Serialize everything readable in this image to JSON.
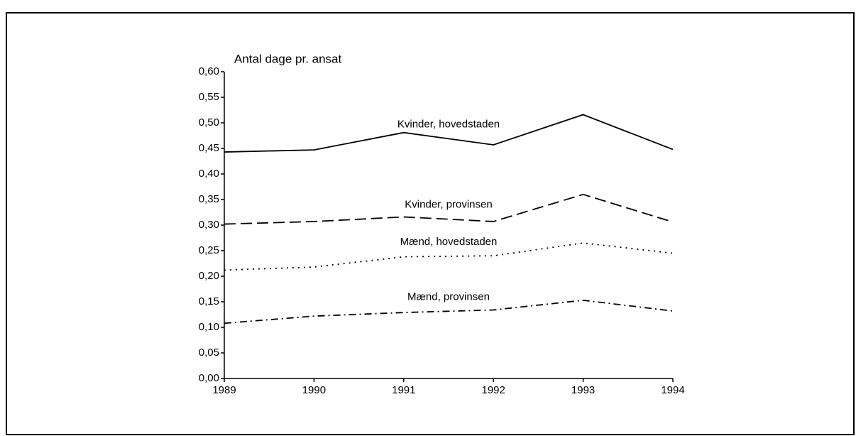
{
  "chart_data": {
    "type": "line",
    "ylabel": "Antal dage pr. ansat",
    "x": [
      1989,
      1990,
      1991,
      1992,
      1993,
      1994
    ],
    "xlim": [
      1989,
      1994
    ],
    "xticks": [
      1989,
      1990,
      1991,
      1992,
      1993,
      1994
    ],
    "ylim": [
      0,
      0.6
    ],
    "yticks": [
      {
        "value": 0,
        "label": "0,00"
      },
      {
        "value": 0.05,
        "label": "0,05"
      },
      {
        "value": 0.1,
        "label": "0,10"
      },
      {
        "value": 0.15,
        "label": "0,15"
      },
      {
        "value": 0.2,
        "label": "0,20"
      },
      {
        "value": 0.25,
        "label": "0,25"
      },
      {
        "value": 0.3,
        "label": "0,30"
      },
      {
        "value": 0.35,
        "label": "0,35"
      },
      {
        "value": 0.4,
        "label": "0,40"
      },
      {
        "value": 0.45,
        "label": "0,45"
      },
      {
        "value": 0.5,
        "label": "0,50"
      },
      {
        "value": 0.55,
        "label": "0,55"
      },
      {
        "value": 0.6,
        "label": "0,60"
      }
    ],
    "series": [
      {
        "name": "Kvinder, hovedstaden",
        "color": "#000000",
        "dash": "solid",
        "values": [
          0.443,
          0.447,
          0.481,
          0.457,
          0.516,
          0.448
        ]
      },
      {
        "name": "Kvinder, provinsen",
        "color": "#000000",
        "dash": "dashed",
        "values": [
          0.302,
          0.307,
          0.316,
          0.307,
          0.36,
          0.306
        ]
      },
      {
        "name": "Mænd, hovedstaden",
        "color": "#000000",
        "dash": "dotted",
        "values": [
          0.212,
          0.218,
          0.238,
          0.24,
          0.265,
          0.245
        ]
      },
      {
        "name": "Mænd, provinsen",
        "color": "#000000",
        "dash": "dashdot",
        "values": [
          0.108,
          0.122,
          0.129,
          0.134,
          0.153,
          0.132
        ]
      }
    ]
  }
}
